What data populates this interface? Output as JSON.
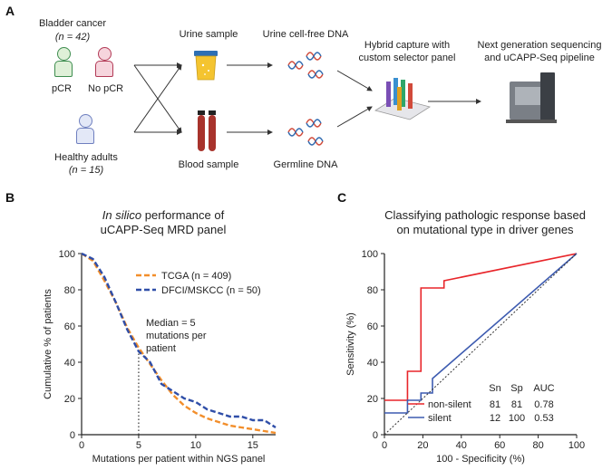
{
  "panel_a": {
    "letter": "A",
    "cohort_title": "Bladder cancer",
    "cohort_n": "(n = 42)",
    "pcr_label": "pCR",
    "no_pcr_label": "No pCR",
    "healthy_title": "Healthy adults",
    "healthy_n": "(n = 15)",
    "urine_sample": "Urine sample",
    "blood_sample": "Blood sample",
    "urine_dna": "Urine cell-free DNA",
    "germline_dna": "Germline DNA",
    "hybrid_capture": [
      "Hybrid capture with",
      "custom selector panel"
    ],
    "ngs": [
      "Next generation sequencing",
      "and uCAPP-Seq pipeline"
    ]
  },
  "panel_b": {
    "letter": "B",
    "title_italic": "In silico",
    "title_rest": " performance of",
    "title_line2": "uCAPP-Seq MRD panel",
    "median_note": [
      "Median = 5",
      "mutations per",
      "patient"
    ]
  },
  "panel_c": {
    "letter": "C",
    "title_line1": "Classifying pathologic response based",
    "title_line2": "on mutational type in driver genes",
    "table_headers": [
      "Sn",
      "Sp",
      "AUC"
    ]
  },
  "chart_data": [
    {
      "type": "line",
      "title": "In silico performance of uCAPP-Seq MRD panel",
      "xlabel": "Mutations per patient within NGS panel",
      "ylabel": "Cumulative % of patients",
      "xlim": [
        0,
        17
      ],
      "ylim": [
        0,
        100
      ],
      "xticks": [
        0,
        5,
        10,
        15
      ],
      "yticks": [
        0,
        20,
        40,
        60,
        80,
        100
      ],
      "grid": false,
      "legend": "top-right",
      "series": [
        {
          "name": "TCGA",
          "legend_label": "TCGA (n = 409)",
          "color": "#f28e2b",
          "style": "dashed",
          "x": [
            0,
            1,
            2,
            3,
            4,
            5,
            6,
            7,
            8,
            9,
            10,
            11,
            12,
            13,
            14,
            15,
            16,
            17
          ],
          "y": [
            100,
            96,
            85,
            73,
            59,
            48,
            39,
            30,
            22,
            16,
            12,
            9,
            7,
            5,
            4,
            3,
            2,
            1
          ]
        },
        {
          "name": "DFCI/MSKCC",
          "legend_label": "DFCI/MSKCC (n = 50)",
          "color": "#2f4ea8",
          "style": "dashed",
          "x": [
            0,
            1,
            2,
            3,
            4,
            5,
            6,
            7,
            8,
            9,
            10,
            11,
            12,
            13,
            14,
            15,
            16,
            17
          ],
          "y": [
            100,
            97,
            87,
            73,
            58,
            46,
            40,
            28,
            24,
            20,
            18,
            14,
            12,
            10,
            10,
            8,
            8,
            4
          ]
        }
      ],
      "annotations": [
        {
          "x": 5,
          "text": "Median = 5 mutations per patient",
          "style": "dotted-vertical"
        }
      ]
    },
    {
      "type": "line",
      "title": "Classifying pathologic response based on mutational type in driver genes",
      "xlabel": "100 - Specificity (%)",
      "ylabel": "Sensitivity (%)",
      "xlim": [
        0,
        100
      ],
      "ylim": [
        0,
        100
      ],
      "xticks": [
        0,
        20,
        40,
        60,
        80,
        100
      ],
      "yticks": [
        0,
        20,
        40,
        60,
        80,
        100
      ],
      "grid": false,
      "legend": "bottom-right",
      "series": [
        {
          "name": "non-silent",
          "color": "#e8252a",
          "sn": "81",
          "sp": "81",
          "auc": "0.78",
          "x": [
            0,
            12,
            12,
            19,
            19,
            31,
            31,
            100
          ],
          "y": [
            19,
            19,
            35,
            35,
            81,
            81,
            85,
            100
          ]
        },
        {
          "name": "silent",
          "color": "#3d5bb0",
          "sn": "12",
          "sp": "100",
          "auc": "0.53",
          "x": [
            0,
            12,
            12,
            19,
            19,
            25,
            25,
            100
          ],
          "y": [
            12,
            12,
            19,
            19,
            23,
            23,
            31,
            100
          ]
        },
        {
          "name": "chance",
          "color": "#333333",
          "style": "dotted",
          "x": [
            0,
            100
          ],
          "y": [
            0,
            100
          ]
        }
      ]
    }
  ]
}
